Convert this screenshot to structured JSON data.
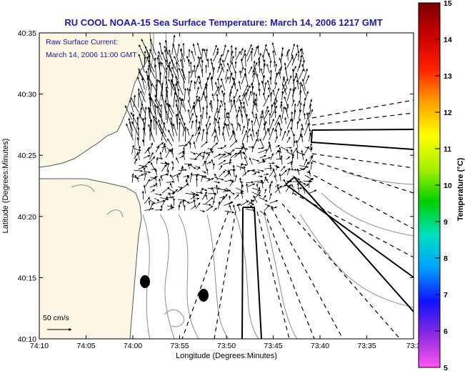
{
  "title": "RU COOL   NOAA-15  Sea Surface Temperature:  March 14, 2006 1217 GMT",
  "current_note": {
    "line1": "Raw Surface Current:",
    "line2": "March 14, 2006 11:00 GMT"
  },
  "scale_label": "50 cm/s",
  "x_axis": {
    "label": "Longitude (Degrees:Minutes)",
    "ticks": [
      "74:10",
      "74:05",
      "74:00",
      "73:55",
      "73:50",
      "73:45",
      "73:40",
      "73:35",
      "73:3"
    ]
  },
  "y_axis": {
    "label": "Latitude (Degrees:Minutes)",
    "ticks": [
      "40:35",
      "40:30",
      "40:25",
      "40:20",
      "40:15",
      "40:10"
    ]
  },
  "colorbar": {
    "label": "Temperature (°C)",
    "ticks": [
      "15",
      "14",
      "13",
      "12",
      "11",
      "10",
      "9",
      "8",
      "7",
      "6",
      "5"
    ],
    "range": [
      5,
      15
    ],
    "colors": [
      "#ff55ee",
      "#8a2be2",
      "#1111ff",
      "#00a0ff",
      "#00e0c0",
      "#00d000",
      "#a8f000",
      "#ffff00",
      "#ffa000",
      "#ff2000",
      "#cc0000",
      "#7a0000"
    ]
  },
  "colors": {
    "land": "#fbf7e4",
    "water": "#ffffff",
    "contour": "#8c8c8c",
    "text_blue": "#1a1aa8"
  }
}
